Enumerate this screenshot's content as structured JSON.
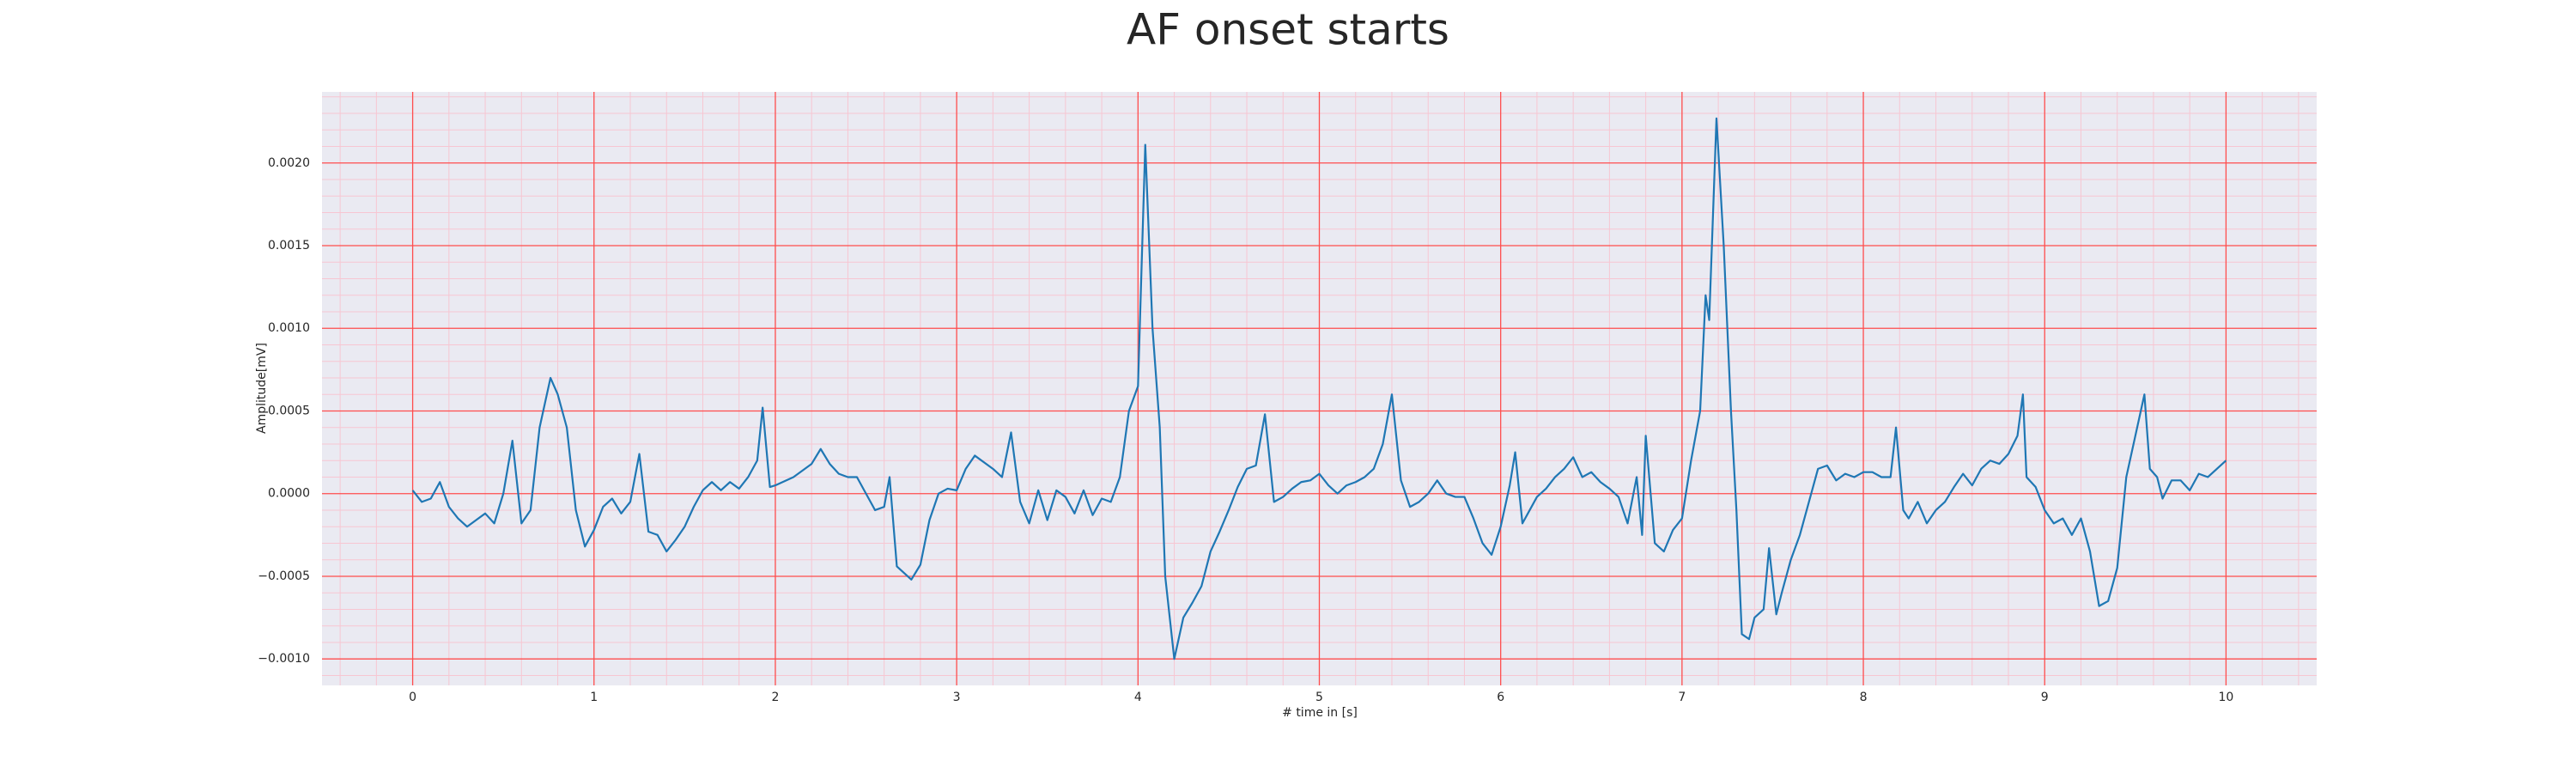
{
  "chart_data": {
    "type": "line",
    "title": "AF onset starts",
    "x_label": "# time in [s]",
    "y_label": "Amplitude[mV]",
    "xlim": [
      -0.5,
      10.5
    ],
    "ylim": [
      -0.00116,
      0.00243
    ],
    "xticks": [
      0,
      1,
      2,
      3,
      4,
      5,
      6,
      7,
      8,
      9,
      10
    ],
    "yticks": [
      {
        "value": -0.001,
        "label": "−0.0010"
      },
      {
        "value": -0.0005,
        "label": "−0.0005"
      },
      {
        "value": 0,
        "label": "0.0000"
      },
      {
        "value": 0.0005,
        "label": "0.0005"
      },
      {
        "value": 0.001,
        "label": "0.0010"
      },
      {
        "value": 0.0015,
        "label": "0.0015"
      },
      {
        "value": 0.002,
        "label": "0.0020"
      }
    ],
    "grid": true,
    "minor_grid": true,
    "background": "#eaeaf2",
    "grid_color": "#ff4d4d",
    "minor_grid_color": "#f7c6d2",
    "x": [
      0,
      0.05,
      0.1,
      0.15,
      0.2,
      0.25,
      0.3,
      0.35,
      0.4,
      0.45,
      0.5,
      0.55,
      0.6,
      0.65,
      0.7,
      0.76,
      0.8,
      0.85,
      0.9,
      0.95,
      1.0,
      1.05,
      1.1,
      1.15,
      1.2,
      1.25,
      1.3,
      1.35,
      1.4,
      1.45,
      1.5,
      1.55,
      1.6,
      1.65,
      1.7,
      1.75,
      1.8,
      1.85,
      1.9,
      1.93,
      1.97,
      2.0,
      2.1,
      2.2,
      2.25,
      2.3,
      2.35,
      2.4,
      2.45,
      2.5,
      2.55,
      2.6,
      2.63,
      2.67,
      2.75,
      2.8,
      2.85,
      2.9,
      2.95,
      3.0,
      3.05,
      3.1,
      3.2,
      3.25,
      3.3,
      3.35,
      3.4,
      3.45,
      3.5,
      3.55,
      3.6,
      3.65,
      3.7,
      3.75,
      3.8,
      3.85,
      3.9,
      3.95,
      4.0,
      4.04,
      4.08,
      4.12,
      4.15,
      4.2,
      4.25,
      4.3,
      4.35,
      4.4,
      4.45,
      4.5,
      4.55,
      4.6,
      4.65,
      4.7,
      4.75,
      4.8,
      4.85,
      4.9,
      4.95,
      5.0,
      5.05,
      5.1,
      5.15,
      5.2,
      5.25,
      5.3,
      5.35,
      5.4,
      5.45,
      5.5,
      5.55,
      5.6,
      5.65,
      5.7,
      5.75,
      5.8,
      5.85,
      5.9,
      5.95,
      6.0,
      6.05,
      6.08,
      6.12,
      6.15,
      6.2,
      6.25,
      6.3,
      6.35,
      6.4,
      6.45,
      6.5,
      6.55,
      6.6,
      6.65,
      6.7,
      6.75,
      6.78,
      6.8,
      6.85,
      6.9,
      6.95,
      7.0,
      7.05,
      7.1,
      7.13,
      7.15,
      7.19,
      7.23,
      7.27,
      7.3,
      7.33,
      7.37,
      7.4,
      7.45,
      7.48,
      7.52,
      7.55,
      7.6,
      7.65,
      7.7,
      7.75,
      7.8,
      7.85,
      7.9,
      7.95,
      8.0,
      8.05,
      8.1,
      8.15,
      8.18,
      8.22,
      8.25,
      8.3,
      8.35,
      8.4,
      8.45,
      8.5,
      8.55,
      8.6,
      8.65,
      8.7,
      8.75,
      8.8,
      8.85,
      8.88,
      8.9,
      8.95,
      9.0,
      9.05,
      9.1,
      9.15,
      9.2,
      9.25,
      9.3,
      9.35,
      9.4,
      9.45,
      9.5,
      9.55,
      9.58,
      9.62,
      9.65,
      9.7,
      9.75,
      9.8,
      9.85,
      9.9,
      9.95,
      10.0
    ],
    "series": [
      {
        "color": "#1f77b4",
        "values": [
          2e-05,
          -5e-05,
          -3e-05,
          7e-05,
          -8e-05,
          -0.00015,
          -0.0002,
          -0.00016,
          -0.00012,
          -0.00018,
          0,
          0.00032,
          -0.00018,
          -0.0001,
          0.0004,
          0.0007,
          0.0006,
          0.0004,
          -0.0001,
          -0.00032,
          -0.00022,
          -8e-05,
          -3e-05,
          -0.00012,
          -5e-05,
          0.00024,
          -0.00023,
          -0.00025,
          -0.00035,
          -0.00028,
          -0.0002,
          -8e-05,
          2e-05,
          7e-05,
          2e-05,
          7e-05,
          3e-05,
          0.0001,
          0.0002,
          0.00052,
          4e-05,
          5e-05,
          0.0001,
          0.00018,
          0.00027,
          0.00018,
          0.00012,
          0.0001,
          0.0001,
          0,
          -0.0001,
          -8e-05,
          0.0001,
          -0.00044,
          -0.00052,
          -0.00043,
          -0.00016,
          0,
          3e-05,
          2e-05,
          0.00015,
          0.00023,
          0.00015,
          0.0001,
          0.00037,
          -5e-05,
          -0.00018,
          2e-05,
          -0.00016,
          2e-05,
          -2e-05,
          -0.00012,
          2e-05,
          -0.00013,
          -3e-05,
          -5e-05,
          0.0001,
          0.0005,
          0.00065,
          0.00211,
          0.001,
          0.0004,
          -0.0005,
          -0.001,
          -0.00075,
          -0.00066,
          -0.00056,
          -0.00035,
          -0.00023,
          -0.0001,
          4e-05,
          0.00015,
          0.00017,
          0.00048,
          -5e-05,
          -2e-05,
          3e-05,
          7e-05,
          8e-05,
          0.00012,
          5e-05,
          0,
          5e-05,
          7e-05,
          0.0001,
          0.00015,
          0.0003,
          0.0006,
          8e-05,
          -8e-05,
          -5e-05,
          0,
          8e-05,
          0,
          -2e-05,
          -2e-05,
          -0.00015,
          -0.0003,
          -0.00037,
          -0.0002,
          5e-05,
          0.00025,
          -0.00018,
          -0.00012,
          -2e-05,
          3e-05,
          0.0001,
          0.00015,
          0.00022,
          0.0001,
          0.00013,
          7e-05,
          3e-05,
          -2e-05,
          -0.00018,
          0.0001,
          -0.00025,
          0.00035,
          -0.0003,
          -0.00035,
          -0.00022,
          -0.00015,
          0.0002,
          0.0005,
          0.0012,
          0.00105,
          0.00227,
          0.0015,
          0.0005,
          -0.0001,
          -0.00085,
          -0.00088,
          -0.00075,
          -0.0007,
          -0.00033,
          -0.00073,
          -0.0006,
          -0.0004,
          -0.00025,
          -5e-05,
          0.00015,
          0.00017,
          8e-05,
          0.00012,
          0.0001,
          0.00013,
          0.00013,
          0.0001,
          0.0001,
          0.0004,
          -0.0001,
          -0.00015,
          -5e-05,
          -0.00018,
          -0.0001,
          -5e-05,
          4e-05,
          0.00012,
          5e-05,
          0.00015,
          0.0002,
          0.00018,
          0.00024,
          0.00035,
          0.0006,
          0.0001,
          4e-05,
          -0.0001,
          -0.00018,
          -0.00015,
          -0.00025,
          -0.00015,
          -0.00035,
          -0.00068,
          -0.00065,
          -0.00045,
          0.0001,
          0.00035,
          0.0006,
          0.00015,
          0.0001,
          -3e-05,
          8e-05,
          8e-05,
          2e-05,
          0.00012,
          0.0001,
          0.00015,
          0.0002
        ]
      }
    ]
  }
}
